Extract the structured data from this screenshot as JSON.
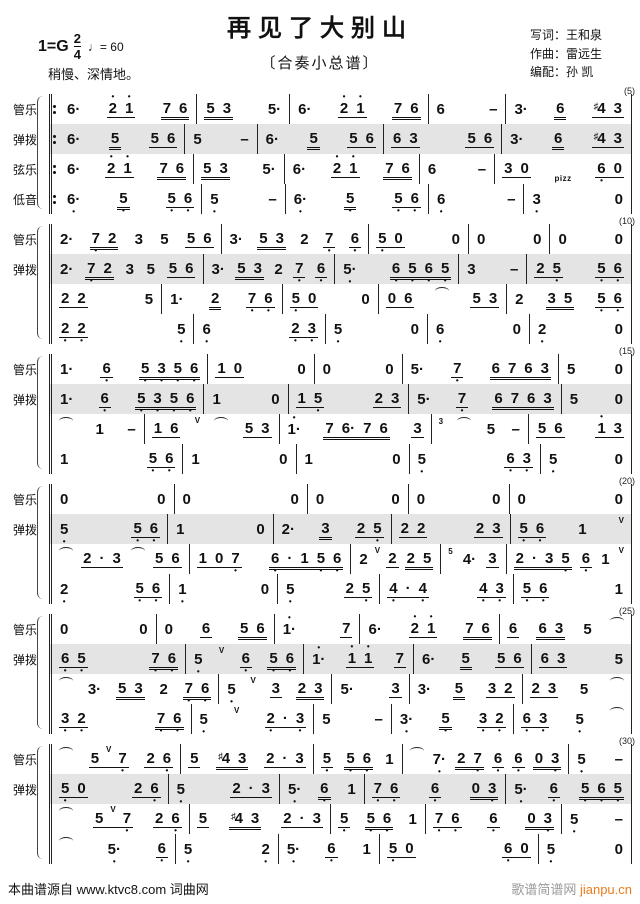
{
  "header": {
    "title": "再见了大别山",
    "subtitle": "〔合奏小总谱〕",
    "key_prefix": "1=G",
    "time_num": "2",
    "time_den": "4",
    "tempo": "♩= 60",
    "expression": "稍慢、深情地。",
    "credits": [
      "写词：王和泉",
      "作曲：雷远生",
      "编配：孙  凯"
    ]
  },
  "footer": {
    "left": "本曲谱源自 www.ktvc8.com 词曲网",
    "site": "歌谱简谱网",
    "link": "jianpu.cn"
  },
  "colors": {
    "highlight": "#e4e4e4",
    "link_orange": "#ee7c1b"
  },
  "legend": "jianpu tokens: ' = dot above (high octave), , = dot below (low octave), · = rhythm dot, # = sharp, [ ] = single beam, { } = double beam, ~ = tie/slur arc, v = breath mark, ^n = small tuplet number, pizz = pizzicato",
  "systems": [
    {
      "number": "(5)",
      "repeat": true,
      "rows": [
        {
          "label": "管乐",
          "hl": false,
          "m": [
            "6· [2' 1'] {7 6}",
            "{5 3} 5·",
            "6· [2' 1'] {7 6}",
            "6 –",
            "3· {6} [#4 3]"
          ]
        },
        {
          "label": "弹拨",
          "hl": true,
          "m": [
            "6· {5} [5 6]",
            "5 –",
            "6· {5} [5 6]",
            "[6 3] [5 6]",
            "3· {6} [#4 3]"
          ]
        },
        {
          "label": "弦乐",
          "hl": false,
          "m": [
            "6· [2' 1'] {7 6}",
            "{5 3} 5·",
            "6· [2' 1'] {7 6}",
            "6 –",
            "[3 0] pizz [6, 0]"
          ]
        },
        {
          "label": "低音",
          "hl": false,
          "m": [
            "6,· {5,} [5, 6,]",
            "5, –",
            "6,· {5,} [5, 6,]",
            "6, –",
            "3, 0"
          ]
        }
      ]
    },
    {
      "number": "(10)",
      "repeat": false,
      "rows": [
        {
          "label": "管乐",
          "hl": false,
          "m": [
            "2· {7, 2} 3 5 [5 6]",
            "3· {5 3} 2 [7,] [6,]",
            "[5, 0] 0",
            "0 0",
            "0 0"
          ]
        },
        {
          "label": "弹拨",
          "hl": true,
          "m": [
            "2· {7, 2} 3 5 [5 6]",
            "3· {5 3} 2 [7,] [6,]",
            "5,· {6, 5, 6, 5,}",
            "3 –",
            "[2 5,] [5, 6,]"
          ]
        },
        {
          "label": "",
          "hl": false,
          "m": [
            "[2 2] 5",
            "1· {2} [7, 6,]",
            "[5, 0] 0",
            "[0 6] ~ [5 3]",
            "2 {3 5} [5, 6,]"
          ]
        },
        {
          "label": "",
          "hl": false,
          "m": [
            "[2, 2,] 5,",
            "6, [2, 3,]",
            "5, 0",
            "6, 0",
            "2, 0"
          ]
        }
      ]
    },
    {
      "number": "(15)",
      "repeat": false,
      "rows": [
        {
          "label": "管乐",
          "hl": false,
          "m": [
            "1· [6,] {5, 3, 5, 6,}",
            "[1 0] 0",
            "0 0",
            "5· [7,] {6 7 6 3}",
            "5 0"
          ]
        },
        {
          "label": "弹拨",
          "hl": true,
          "m": [
            "1· [6,] {5, 3, 5, 6,}",
            "1 0",
            "[1 5,] [2 3]",
            "5· [7,] {6 7 6 3}",
            "5 0"
          ]
        },
        {
          "label": "",
          "hl": false,
          "m": [
            "~ 1 –",
            "[1 6] v ~ [5 3]",
            "1'· {7 6· 7 6} [3]",
            "^3 ~ 5 –",
            "[5 6] [1' 3]"
          ]
        },
        {
          "label": "",
          "hl": false,
          "m": [
            "1 [5, 6,]",
            "1 0",
            "1 0",
            "5, [6, 3,]",
            "5, 0"
          ]
        }
      ]
    },
    {
      "number": "(20)",
      "repeat": false,
      "rows": [
        {
          "label": "管乐",
          "hl": false,
          "m": [
            "0 0",
            "0 0",
            "0 0",
            "0 0",
            "0 0"
          ]
        },
        {
          "label": "弹拨",
          "hl": true,
          "m": [
            "5, [5, 6,]",
            "1 0",
            "2· {3} [2 5,]",
            "[2 2] [2 3]",
            "[5, 6,] 1 v"
          ]
        },
        {
          "label": "",
          "hl": false,
          "m": [
            "~ [2 · 3] ~ [5 6]",
            "[1 0 7,] {6, · 1 5, 6,}",
            "2 v [2] {2 5}",
            "^5 4· [3]",
            "{2 · 3 5,} [6,] 1 v"
          ]
        },
        {
          "label": "",
          "hl": false,
          "m": [
            "2, [5, 6,]",
            "1, 0",
            "5, [2 5,]",
            "[4, · 4,] [4, 3,]",
            "[5, 6,] 1"
          ]
        }
      ]
    },
    {
      "number": "(25)",
      "repeat": false,
      "rows": [
        {
          "label": "管乐",
          "hl": false,
          "m": [
            "0 0",
            "0 [6] {5 6}",
            "1'· [7]",
            "6· [2' 1'] {7 6}",
            "[6] {6 3} 5 ~"
          ]
        },
        {
          "label": "弹拨",
          "hl": true,
          "m": [
            "[6, 5,] {7, 6,}",
            "5, v [6,] {5, 6,}",
            "1'· [1' 1'] [7]",
            "6· {5} [5 6]",
            "[6 3] 5"
          ]
        },
        {
          "label": "",
          "hl": false,
          "m": [
            "~ 3· {5 3} 2 {7, 6,}",
            "5, v [3] {2 3}",
            "5· [3]",
            "3· {5} [3 2]",
            "[2 3] 5 ~"
          ]
        },
        {
          "label": "",
          "hl": false,
          "m": [
            "[3, 2,] {7, 6,}",
            "5, v [2, · 3,]",
            "5 –",
            "3,· {5,} [3, 2,]",
            "[6, 3,] 5, ~"
          ]
        }
      ]
    },
    {
      "number": "(30)",
      "repeat": false,
      "rows": [
        {
          "label": "管乐",
          "hl": false,
          "m": [
            "~ [5 v 7,] [2 6,]",
            "[5] {#4 3} [2 · 3]",
            "[5,] {5, 6,} 1",
            "~ 7,· {2 7,} [6,] [6,] {0 3,}",
            "5, –"
          ]
        },
        {
          "label": "弹拨",
          "hl": true,
          "m": [
            "[5, 0] [2 6,]",
            "5, [2 · 3]",
            "5,· {6,} 1",
            "[7, 6,] [6,] {0 3,}",
            "5,· [6,] {5, 6, 5,}"
          ]
        },
        {
          "label": "",
          "hl": false,
          "m": [
            "~ [5 v 7,] [2 6,]",
            "[5] {#4 3} [2 · 3]",
            "[5,] {5, 6,} 1",
            "[7, 6,] [6,] {0 3,}",
            "5, –"
          ]
        },
        {
          "label": "",
          "hl": false,
          "m": [
            "~ 5,· [6,]",
            "5, 2,",
            "5,· [6,] 1",
            "[5, 0] [6, 0]",
            "5, 0"
          ]
        }
      ]
    }
  ]
}
